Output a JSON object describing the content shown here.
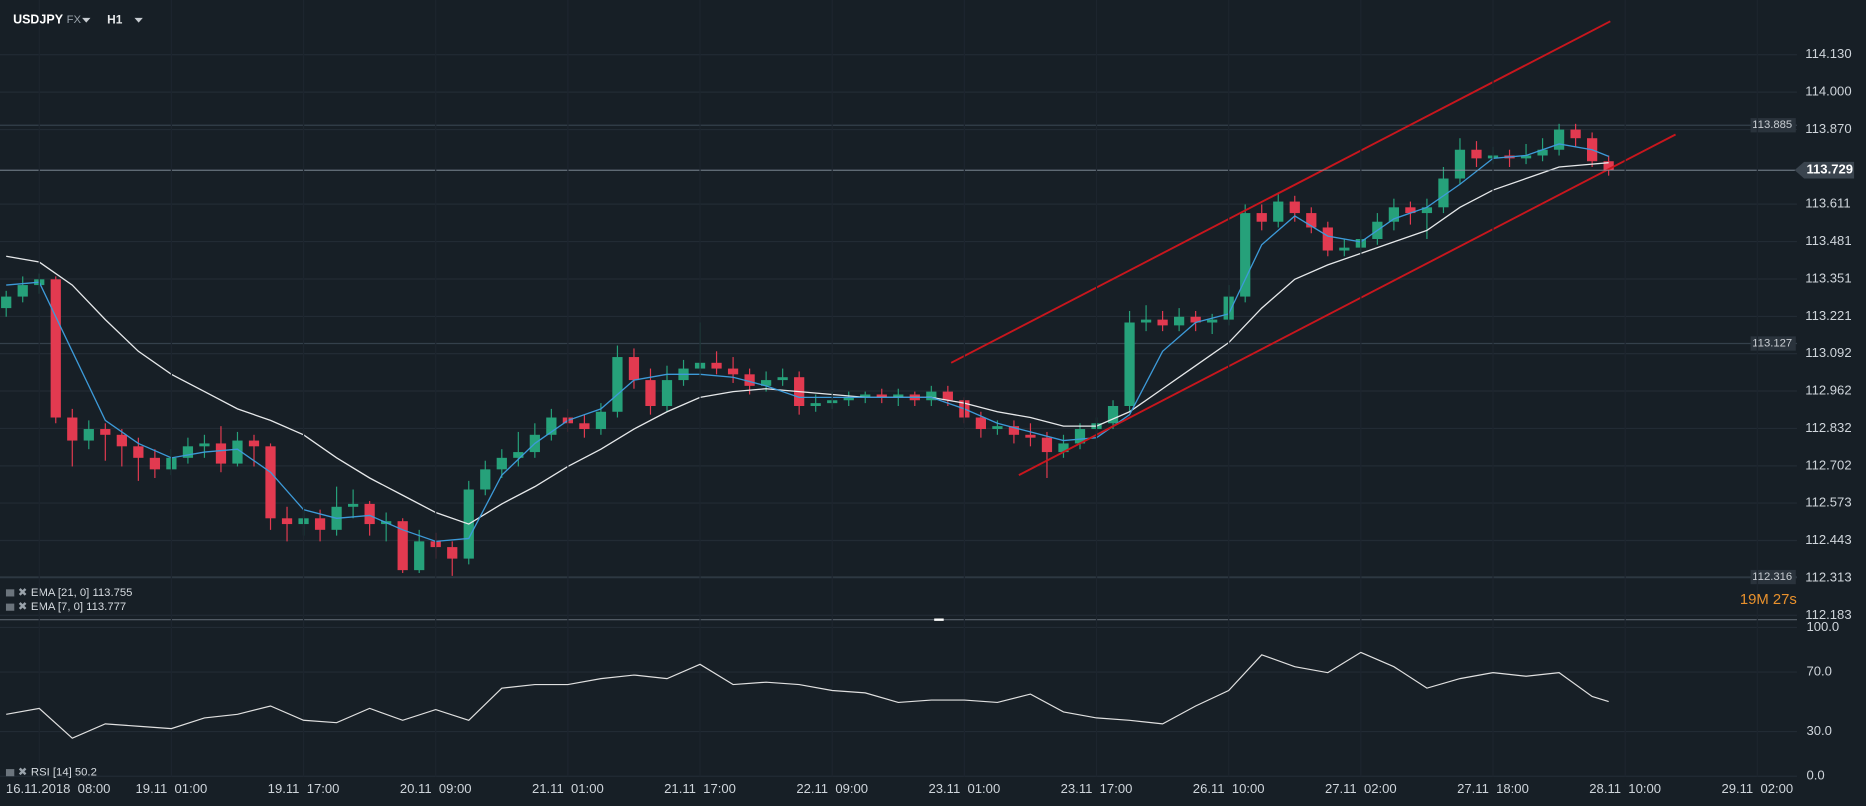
{
  "header": {
    "symbol": "USDJPY",
    "market": "FX",
    "timeframe": "H1"
  },
  "countdown": "19M 27s",
  "chart_data": [
    {
      "type": "candlestick",
      "colors": {
        "up": "#26a17a",
        "down": "#e23a50"
      },
      "x": [
        -4,
        -2,
        0,
        2,
        4,
        6,
        8,
        10,
        12,
        14,
        16,
        18,
        20,
        22,
        24,
        26,
        28,
        30,
        32,
        34,
        36,
        38,
        40,
        42,
        44,
        46,
        48,
        50,
        52,
        54,
        56,
        58,
        60,
        62,
        64,
        66,
        68,
        70,
        72,
        74,
        76,
        78,
        80,
        82,
        84,
        86,
        88,
        90,
        92,
        94,
        96,
        98,
        100,
        102,
        104,
        106,
        108,
        110,
        112,
        114,
        116,
        118,
        120,
        122,
        124,
        126,
        128,
        130,
        132,
        134,
        136,
        138,
        140,
        142,
        144,
        146,
        148,
        150,
        152,
        154,
        156,
        158,
        160,
        162,
        164,
        166,
        168,
        170,
        172,
        174,
        176,
        178,
        180,
        182,
        184,
        186,
        188,
        190
      ],
      "ohlc": [
        [
          113.25,
          113.31,
          113.22,
          113.29
        ],
        [
          113.29,
          113.36,
          113.27,
          113.33
        ],
        [
          113.33,
          113.37,
          113.3,
          113.35
        ],
        [
          113.35,
          113.36,
          112.85,
          112.87
        ],
        [
          112.87,
          112.9,
          112.7,
          112.79
        ],
        [
          112.79,
          112.86,
          112.76,
          112.83
        ],
        [
          112.83,
          112.85,
          112.72,
          112.81
        ],
        [
          112.81,
          112.83,
          112.7,
          112.77
        ],
        [
          112.77,
          112.8,
          112.65,
          112.73
        ],
        [
          112.73,
          112.76,
          112.66,
          112.69
        ],
        [
          112.69,
          112.76,
          112.67,
          112.73
        ],
        [
          112.73,
          112.8,
          112.71,
          112.77
        ],
        [
          112.77,
          112.81,
          112.73,
          112.78
        ],
        [
          112.78,
          112.84,
          112.68,
          112.71
        ],
        [
          112.71,
          112.82,
          112.7,
          112.79
        ],
        [
          112.79,
          112.81,
          112.7,
          112.77
        ],
        [
          112.77,
          112.78,
          112.48,
          112.52
        ],
        [
          112.52,
          112.56,
          112.44,
          112.5
        ],
        [
          112.5,
          112.56,
          112.46,
          112.52
        ],
        [
          112.52,
          112.55,
          112.44,
          112.48
        ],
        [
          112.48,
          112.63,
          112.46,
          112.56
        ],
        [
          112.56,
          112.62,
          112.52,
          112.57
        ],
        [
          112.57,
          112.58,
          112.46,
          112.5
        ],
        [
          112.5,
          112.54,
          112.44,
          112.51
        ],
        [
          112.51,
          112.52,
          112.33,
          112.34
        ],
        [
          112.34,
          112.48,
          112.33,
          112.44
        ],
        [
          112.44,
          112.47,
          112.38,
          112.42
        ],
        [
          112.42,
          112.44,
          112.32,
          112.38
        ],
        [
          112.38,
          112.65,
          112.36,
          112.62
        ],
        [
          112.62,
          112.72,
          112.6,
          112.69
        ],
        [
          112.69,
          112.76,
          112.66,
          112.73
        ],
        [
          112.73,
          112.82,
          112.7,
          112.75
        ],
        [
          112.75,
          112.85,
          112.73,
          112.81
        ],
        [
          112.81,
          112.9,
          112.79,
          112.87
        ],
        [
          112.87,
          112.9,
          112.82,
          112.85
        ],
        [
          112.85,
          112.88,
          112.8,
          112.83
        ],
        [
          112.83,
          112.92,
          112.81,
          112.89
        ],
        [
          112.89,
          113.12,
          112.87,
          113.08
        ],
        [
          113.08,
          113.11,
          112.97,
          113.0
        ],
        [
          113.0,
          113.04,
          112.88,
          112.91
        ],
        [
          112.91,
          113.05,
          112.89,
          113.0
        ],
        [
          113.0,
          113.07,
          112.98,
          113.04
        ],
        [
          113.04,
          113.2,
          113.01,
          113.06
        ],
        [
          113.06,
          113.1,
          113.02,
          113.04
        ],
        [
          113.04,
          113.08,
          112.99,
          113.02
        ],
        [
          113.02,
          113.04,
          112.95,
          112.98
        ],
        [
          112.98,
          113.03,
          112.96,
          113.0
        ],
        [
          113.0,
          113.04,
          112.98,
          113.01
        ],
        [
          113.01,
          113.03,
          112.88,
          112.91
        ],
        [
          112.91,
          112.95,
          112.89,
          112.92
        ],
        [
          112.92,
          112.96,
          112.9,
          112.93
        ],
        [
          112.93,
          112.96,
          112.91,
          112.94
        ],
        [
          112.94,
          112.96,
          112.92,
          112.95
        ],
        [
          112.95,
          112.97,
          112.92,
          112.94
        ],
        [
          112.94,
          112.97,
          112.91,
          112.95
        ],
        [
          112.95,
          112.96,
          112.91,
          112.93
        ],
        [
          112.93,
          112.98,
          112.91,
          112.96
        ],
        [
          112.96,
          112.98,
          112.91,
          112.93
        ],
        [
          112.93,
          112.94,
          112.85,
          112.87
        ],
        [
          112.87,
          112.89,
          112.8,
          112.83
        ],
        [
          112.83,
          112.86,
          112.81,
          112.84
        ],
        [
          112.84,
          112.86,
          112.78,
          112.81
        ],
        [
          112.81,
          112.85,
          112.77,
          112.8
        ],
        [
          112.8,
          112.82,
          112.66,
          112.75
        ],
        [
          112.75,
          112.81,
          112.73,
          112.78
        ],
        [
          112.78,
          112.85,
          112.76,
          112.83
        ],
        [
          112.83,
          112.87,
          112.81,
          112.85
        ],
        [
          112.85,
          112.93,
          112.83,
          112.91
        ],
        [
          112.91,
          113.24,
          112.89,
          113.2
        ],
        [
          113.2,
          113.26,
          113.17,
          113.21
        ],
        [
          113.21,
          113.24,
          113.17,
          113.19
        ],
        [
          113.19,
          113.25,
          113.17,
          113.22
        ],
        [
          113.22,
          113.24,
          113.17,
          113.2
        ],
        [
          113.2,
          113.23,
          113.16,
          113.21
        ],
        [
          113.21,
          113.33,
          113.19,
          113.29
        ],
        [
          113.29,
          113.61,
          113.27,
          113.58
        ],
        [
          113.58,
          113.61,
          113.52,
          113.55
        ],
        [
          113.55,
          113.65,
          113.53,
          113.62
        ],
        [
          113.62,
          113.64,
          113.55,
          113.58
        ],
        [
          113.58,
          113.6,
          113.51,
          113.53
        ],
        [
          113.53,
          113.55,
          113.43,
          113.45
        ],
        [
          113.45,
          113.49,
          113.43,
          113.46
        ],
        [
          113.46,
          113.52,
          113.44,
          113.49
        ],
        [
          113.49,
          113.58,
          113.47,
          113.55
        ],
        [
          113.55,
          113.63,
          113.52,
          113.6
        ],
        [
          113.6,
          113.62,
          113.54,
          113.58
        ],
        [
          113.58,
          113.63,
          113.49,
          113.6
        ],
        [
          113.6,
          113.74,
          113.58,
          113.7
        ],
        [
          113.7,
          113.84,
          113.68,
          113.8
        ],
        [
          113.8,
          113.83,
          113.74,
          113.77
        ],
        [
          113.77,
          113.81,
          113.75,
          113.78
        ],
        [
          113.78,
          113.8,
          113.74,
          113.77
        ],
        [
          113.77,
          113.82,
          113.75,
          113.78
        ],
        [
          113.78,
          113.84,
          113.76,
          113.8
        ],
        [
          113.8,
          113.89,
          113.78,
          113.87
        ],
        [
          113.87,
          113.89,
          113.81,
          113.84
        ],
        [
          113.84,
          113.86,
          113.74,
          113.76
        ],
        [
          113.76,
          113.78,
          113.71,
          113.729
        ]
      ],
      "series": [
        {
          "name": "EMA [21, 0] 113.755",
          "color": "#e6e8ea",
          "x": [
            -4,
            0,
            4,
            8,
            12,
            16,
            20,
            24,
            28,
            32,
            36,
            40,
            44,
            48,
            52,
            56,
            60,
            64,
            68,
            72,
            76,
            80,
            84,
            88,
            92,
            96,
            100,
            104,
            108,
            112,
            116,
            120,
            124,
            128,
            132,
            136,
            140,
            144,
            148,
            152,
            156,
            160,
            164,
            168,
            172,
            176,
            180,
            184,
            188,
            190
          ],
          "values": [
            113.43,
            113.41,
            113.33,
            113.21,
            113.1,
            113.02,
            112.96,
            112.9,
            112.86,
            112.81,
            112.73,
            112.66,
            112.6,
            112.54,
            112.5,
            112.57,
            112.63,
            112.7,
            112.76,
            112.83,
            112.89,
            112.94,
            112.96,
            112.97,
            112.96,
            112.95,
            112.94,
            112.94,
            112.94,
            112.92,
            112.89,
            112.87,
            112.84,
            112.84,
            112.89,
            112.97,
            113.05,
            113.13,
            113.25,
            113.35,
            113.4,
            113.44,
            113.48,
            113.52,
            113.6,
            113.66,
            113.7,
            113.74,
            113.75,
            113.755
          ]
        },
        {
          "name": "EMA [7, 0] 113.777",
          "color": "#3d9ad8",
          "x": [
            -4,
            0,
            4,
            8,
            12,
            16,
            20,
            24,
            28,
            32,
            36,
            40,
            44,
            48,
            52,
            56,
            60,
            64,
            68,
            72,
            76,
            80,
            84,
            88,
            92,
            96,
            100,
            104,
            108,
            112,
            116,
            120,
            124,
            128,
            132,
            136,
            140,
            144,
            148,
            152,
            156,
            160,
            164,
            168,
            172,
            176,
            180,
            184,
            188,
            190
          ],
          "values": [
            113.33,
            113.34,
            113.1,
            112.86,
            112.78,
            112.73,
            112.75,
            112.76,
            112.68,
            112.55,
            112.52,
            112.53,
            112.48,
            112.44,
            112.45,
            112.67,
            112.78,
            112.86,
            112.9,
            113.0,
            113.02,
            113.02,
            113.01,
            112.98,
            112.94,
            112.94,
            112.94,
            112.94,
            112.94,
            112.9,
            112.85,
            112.82,
            112.79,
            112.8,
            112.88,
            113.1,
            113.2,
            113.23,
            113.47,
            113.57,
            113.5,
            113.48,
            113.56,
            113.6,
            113.68,
            113.77,
            113.78,
            113.82,
            113.8,
            113.777
          ]
        }
      ],
      "xlim": [
        -4.75,
        212.8
      ],
      "ylim": [
        112.17,
        114.32
      ],
      "yticks": [
        {
          "value": 114.13,
          "label": "114.130"
        },
        {
          "value": 114,
          "label": "114.000"
        },
        {
          "value": 113.87,
          "label": "113.870"
        },
        113.611,
        113.481,
        113.351,
        113.221,
        113.092,
        112.962,
        112.832,
        112.702,
        112.573,
        112.443,
        112.313,
        112.183
      ],
      "grid": true,
      "price_levels": [
        113.885,
        113.127,
        112.316
      ],
      "last_price": 113.729,
      "trend_lines": [
        {
          "color": "#c8161d",
          "x": [
            110.4,
            190.2
          ],
          "y": [
            113.06,
            114.246
          ]
        },
        {
          "color": "#c8161d",
          "x": [
            118.6,
            198.1
          ],
          "y": [
            112.67,
            113.853
          ]
        }
      ]
    },
    {
      "type": "line",
      "x": [
        -4,
        0,
        4,
        8,
        12,
        16,
        20,
        24,
        28,
        32,
        36,
        40,
        44,
        48,
        52,
        56,
        60,
        64,
        68,
        72,
        76,
        80,
        84,
        88,
        92,
        96,
        100,
        104,
        108,
        112,
        116,
        120,
        124,
        128,
        132,
        136,
        140,
        144,
        148,
        152,
        156,
        160,
        164,
        168,
        172,
        176,
        180,
        184,
        188,
        190
      ],
      "series": [
        {
          "name": "RSI [14] 50.2",
          "color": "#e0e0e0",
          "values": [
            41.6,
            45.6,
            25.6,
            35.2,
            33.6,
            32,
            39.2,
            41.6,
            47.2,
            37.6,
            36,
            45.6,
            37.6,
            44.8,
            37.6,
            59.2,
            61.6,
            61.6,
            65.6,
            68,
            65.6,
            75.2,
            61.6,
            63.2,
            61.6,
            57.6,
            56,
            49.6,
            51.2,
            51.2,
            49.6,
            55.2,
            43.2,
            39.2,
            37.6,
            35.2,
            47.2,
            57.6,
            81.6,
            73.6,
            69.6,
            83.2,
            73.6,
            59.2,
            65.6,
            69.6,
            67.2,
            69.6,
            53.6,
            50.2
          ]
        }
      ],
      "xlim": [
        -4.75,
        212.8
      ],
      "ylim": [
        0,
        100
      ],
      "yticks": [
        {
          "value": 100,
          "label": "100.0"
        },
        {
          "value": 70,
          "label": "70.0"
        },
        {
          "value": 30,
          "label": "30.0"
        },
        {
          "value": 0,
          "label": "0.0"
        }
      ],
      "xticks": [
        {
          "value": 0,
          "label": "16.11.2018  08:00"
        },
        {
          "value": 16,
          "label": "19.11  01:00"
        },
        {
          "value": 32,
          "label": "19.11  17:00"
        },
        {
          "value": 48,
          "label": "20.11  09:00"
        },
        {
          "value": 64,
          "label": "21.11  01:00"
        },
        {
          "value": 80,
          "label": "21.11  17:00"
        },
        {
          "value": 96,
          "label": "22.11  09:00"
        },
        {
          "value": 112,
          "label": "23.11  01:00"
        },
        {
          "value": 128,
          "label": "23.11  17:00"
        },
        {
          "value": 144,
          "label": "26.11  10:00"
        },
        {
          "value": 160,
          "label": "27.11  02:00"
        },
        {
          "value": 176,
          "label": "27.11  18:00"
        },
        {
          "value": 192,
          "label": "28.11  10:00"
        },
        {
          "value": 208,
          "label": "29.11  02:00"
        }
      ]
    }
  ]
}
